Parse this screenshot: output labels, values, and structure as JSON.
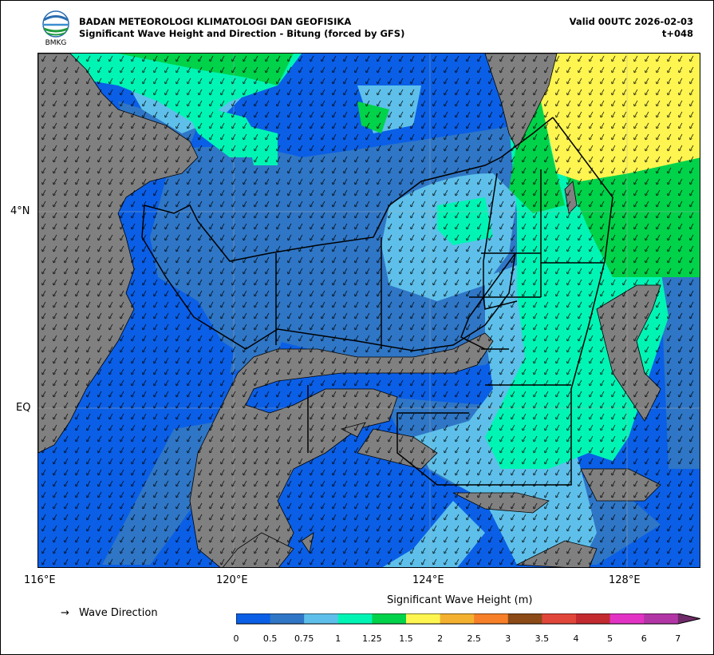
{
  "header": {
    "agency": "BADAN METEOROLOGI KLIMATOLOGI DAN GEOFISIKA",
    "title": "Significant Wave Height and Direction - Bitung (forced by GFS)",
    "valid": "Valid 00UTC 2026-02-03",
    "lead": "t+048",
    "logo_text": "BMKG"
  },
  "axes": {
    "lon_labels": [
      "116°E",
      "120°E",
      "124°E",
      "128°E"
    ],
    "lat_labels": [
      "4°N",
      "EQ"
    ]
  },
  "legend": {
    "arrow_glyph": "→",
    "direction_label": "Wave Direction"
  },
  "colorbar": {
    "title": "Significant Wave Height (m)",
    "ticks": [
      "0",
      "0.5",
      "0.75",
      "1",
      "1.25",
      "1.5",
      "2",
      "2.5",
      "3",
      "3.5",
      "4",
      "5",
      "6",
      "7"
    ],
    "colors": [
      "#0a5fe6",
      "#2f76c6",
      "#5ec0ea",
      "#00f5b5",
      "#00d24a",
      "#fef550",
      "#f4b130",
      "#f67f28",
      "#8b4a16",
      "#e2463a",
      "#c22a2f",
      "#e233c5",
      "#b235a5"
    ],
    "extend_color": "#6f2a68"
  },
  "map_colors": {
    "land": "#808080",
    "sea_0_05": "#0a5fe6",
    "sea_05_075": "#2f76c6",
    "sea_075_1": "#5ec0ea",
    "sea_1_125": "#00f5b5",
    "sea_125_15": "#00d24a",
    "sea_15_2": "#fef550"
  }
}
